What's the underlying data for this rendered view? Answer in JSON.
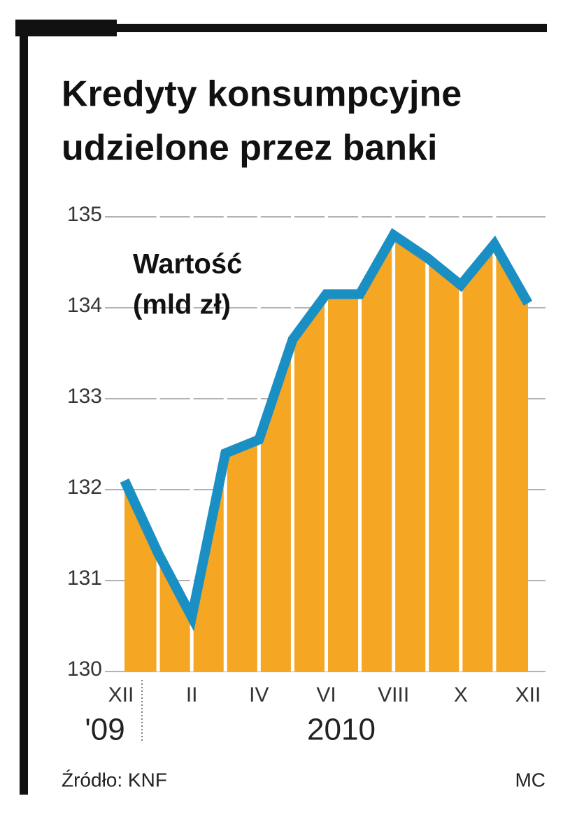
{
  "chart_data": {
    "type": "area-line",
    "title": [
      "Kredyty konsumpcyjne",
      "udzielone przez banki"
    ],
    "ylabel": [
      "Wartość",
      "(mld zł)"
    ],
    "categories": [
      "XII",
      null,
      "II",
      null,
      "IV",
      null,
      "VI",
      null,
      "VIII",
      null,
      "X",
      null,
      "XII"
    ],
    "year_labels": [
      "'09",
      "2010"
    ],
    "series": [
      {
        "name": null,
        "color": "#1a8fc4",
        "fill": "#f5a623",
        "values": [
          132.1,
          131.3,
          130.6,
          132.4,
          132.55,
          133.65,
          134.15,
          134.15,
          134.8,
          134.55,
          134.25,
          134.7,
          134.05
        ]
      }
    ],
    "ylim": [
      130,
      135
    ],
    "yticks": [
      130,
      131,
      132,
      133,
      134,
      135
    ],
    "grid": true,
    "source": "Źródło: KNF",
    "credit": "MC"
  }
}
